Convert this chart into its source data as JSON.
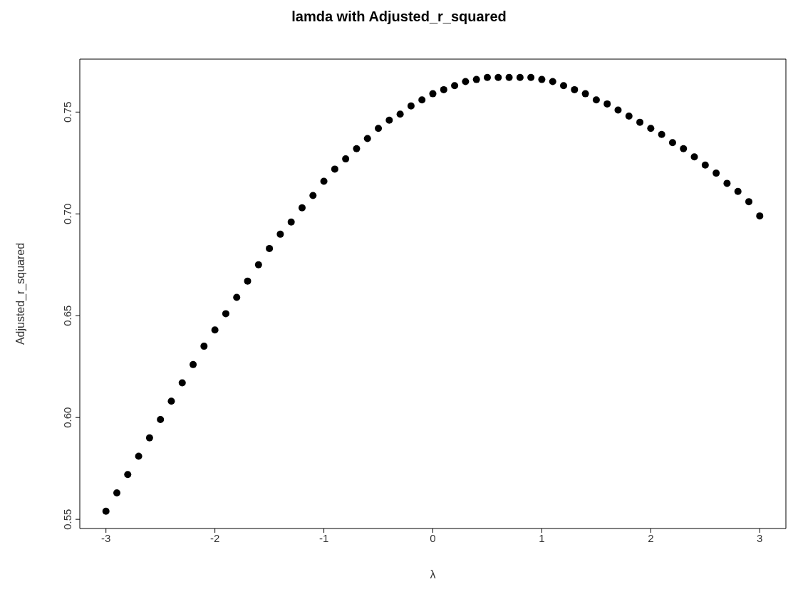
{
  "chart_data": {
    "type": "scatter",
    "title": "lamda with Adjusted_r_squared",
    "xlabel": "λ",
    "ylabel": "Adjusted_r_squared",
    "marker": "circle",
    "color": "#000000",
    "x": [
      -3,
      -2.9,
      -2.8,
      -2.7,
      -2.6,
      -2.5,
      -2.4,
      -2.3,
      -2.2,
      -2.1,
      -2,
      -1.9,
      -1.8,
      -1.7,
      -1.6,
      -1.5,
      -1.4,
      -1.3,
      -1.2,
      -1.1,
      -1,
      -0.9,
      -0.8,
      -0.7,
      -0.6,
      -0.5,
      -0.4,
      -0.3,
      -0.2,
      -0.1,
      0,
      0.1,
      0.2,
      0.3,
      0.4,
      0.5,
      0.6,
      0.7,
      0.8,
      0.9,
      1,
      1.1,
      1.2,
      1.3,
      1.4,
      1.5,
      1.6,
      1.7,
      1.8,
      1.9,
      2,
      2.1,
      2.2,
      2.3,
      2.4,
      2.5,
      2.6,
      2.7,
      2.8,
      2.9,
      3
    ],
    "values": [
      0.554,
      0.563,
      0.572,
      0.581,
      0.59,
      0.599,
      0.608,
      0.617,
      0.626,
      0.635,
      0.643,
      0.651,
      0.659,
      0.667,
      0.675,
      0.683,
      0.69,
      0.696,
      0.703,
      0.709,
      0.716,
      0.722,
      0.727,
      0.732,
      0.737,
      0.742,
      0.746,
      0.749,
      0.753,
      0.756,
      0.759,
      0.761,
      0.763,
      0.765,
      0.766,
      0.767,
      0.767,
      0.767,
      0.767,
      0.767,
      0.766,
      0.765,
      0.763,
      0.761,
      0.759,
      0.756,
      0.754,
      0.751,
      0.748,
      0.745,
      0.742,
      0.739,
      0.735,
      0.732,
      0.728,
      0.724,
      0.72,
      0.715,
      0.711,
      0.706,
      0.699
    ],
    "xlim": [
      -3.24,
      3.24
    ],
    "ylim": [
      0.5455,
      0.776
    ],
    "xticks": [
      -3,
      -2,
      -1,
      0,
      1,
      2,
      3
    ],
    "yticks": [
      {
        "value": 0.55,
        "label": "0.55"
      },
      {
        "value": 0.6,
        "label": "0.60"
      },
      {
        "value": 0.65,
        "label": "0.65"
      },
      {
        "value": 0.7,
        "label": "0.70"
      },
      {
        "value": 0.75,
        "label": "0.75"
      }
    ]
  }
}
